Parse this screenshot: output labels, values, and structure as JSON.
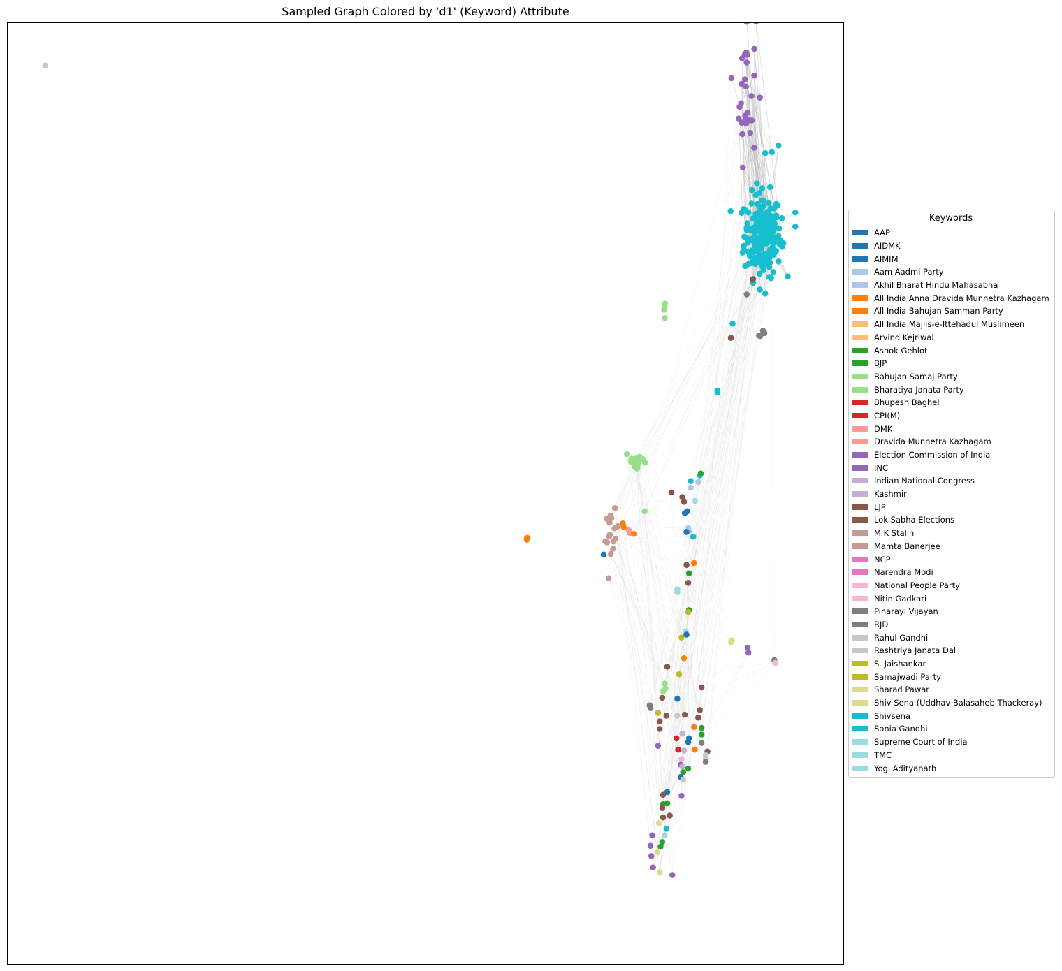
{
  "title": "Sampled Graph Colored by 'd1' (Keyword) Attribute",
  "legend": {
    "title": "Keywords",
    "entries": [
      {
        "label": "AAP",
        "color": "#1f77b4"
      },
      {
        "label": "AIDMK",
        "color": "#1f77b4"
      },
      {
        "label": "AIMIM",
        "color": "#1f77b4"
      },
      {
        "label": "Aam Aadmi Party",
        "color": "#aec7e8"
      },
      {
        "label": "Akhil Bharat Hindu Mahasabha",
        "color": "#aec7e8"
      },
      {
        "label": "All India Anna Dravida Munnetra Kazhagam",
        "color": "#ff7f0e"
      },
      {
        "label": "All India Bahujan Samman Party",
        "color": "#ff7f0e"
      },
      {
        "label": "All India Majlis-e-Ittehadul Muslimeen",
        "color": "#ffbb78"
      },
      {
        "label": "Arvind Kejriwal",
        "color": "#ffbb78"
      },
      {
        "label": "Ashok Gehlot",
        "color": "#2ca02c"
      },
      {
        "label": "BJP",
        "color": "#2ca02c"
      },
      {
        "label": "Bahujan Samaj Party",
        "color": "#98df8a"
      },
      {
        "label": "Bharatiya Janata Party",
        "color": "#98df8a"
      },
      {
        "label": "Bhupesh Baghel",
        "color": "#d62728"
      },
      {
        "label": "CPI(M)",
        "color": "#d62728"
      },
      {
        "label": "DMK",
        "color": "#ff9896"
      },
      {
        "label": "Dravida Munnetra Kazhagam",
        "color": "#ff9896"
      },
      {
        "label": "Election Commission of India",
        "color": "#9467bd"
      },
      {
        "label": "INC",
        "color": "#9467bd"
      },
      {
        "label": "Indian National Congress",
        "color": "#c5b0d5"
      },
      {
        "label": "Kashmir",
        "color": "#c5b0d5"
      },
      {
        "label": "LJP",
        "color": "#8c564b"
      },
      {
        "label": "Lok Sabha Elections",
        "color": "#8c564b"
      },
      {
        "label": "M K Stalin",
        "color": "#c49c94"
      },
      {
        "label": "Mamta Banerjee",
        "color": "#c49c94"
      },
      {
        "label": "NCP",
        "color": "#e377c2"
      },
      {
        "label": "Narendra Modi",
        "color": "#e377c2"
      },
      {
        "label": "National People Party",
        "color": "#f7b6d2"
      },
      {
        "label": "Nitin Gadkari",
        "color": "#f7b6d2"
      },
      {
        "label": "Pinarayi Vijayan",
        "color": "#7f7f7f"
      },
      {
        "label": "RJD",
        "color": "#7f7f7f"
      },
      {
        "label": "Rahul Gandhi",
        "color": "#c7c7c7"
      },
      {
        "label": "Rashtriya Janata Dal",
        "color": "#c7c7c7"
      },
      {
        "label": "S. Jaishankar",
        "color": "#bcbd22"
      },
      {
        "label": "Samajwadi Party",
        "color": "#bcbd22"
      },
      {
        "label": "Sharad Pawar",
        "color": "#dbdb8d"
      },
      {
        "label": "Shiv Sena (Uddhav Balasaheb Thackeray)",
        "color": "#dbdb8d"
      },
      {
        "label": "Shivsena",
        "color": "#17becf"
      },
      {
        "label": "Sonia Gandhi",
        "color": "#17becf"
      },
      {
        "label": "Supreme Court of India",
        "color": "#9edae5"
      },
      {
        "label": "TMC",
        "color": "#9edae5"
      },
      {
        "label": "Yogi Adityanath",
        "color": "#9edae5"
      }
    ]
  },
  "chart_data": {
    "type": "scatter",
    "title": "Sampled Graph Colored by 'd1' (Keyword) Attribute",
    "xlabel": "",
    "ylabel": "",
    "axes_visible": false,
    "grid": false,
    "legend_position": "right, outside plot",
    "legend_title": "Keywords",
    "xlim": [
      0,
      100
    ],
    "ylim": [
      0,
      100
    ],
    "edge_color": "#bbbbbb",
    "clusters": [
      {
        "x": 90.2,
        "y": 77.5,
        "n": 220,
        "sx": 1.1,
        "sy": 2.2,
        "color": "#17becf"
      },
      {
        "x": 88.2,
        "y": 93.2,
        "n": 30,
        "sx": 0.6,
        "sy": 4.0,
        "color": "#9467bd"
      },
      {
        "x": 72.2,
        "y": 45.5,
        "n": 16,
        "sx": 0.4,
        "sy": 1.3,
        "color": "#c49c94"
      },
      {
        "x": 75.2,
        "y": 53.5,
        "n": 14,
        "sx": 0.7,
        "sy": 0.6,
        "color": "#98df8a"
      },
      {
        "x": 78.5,
        "y": 69.8,
        "n": 5,
        "sx": 0.1,
        "sy": 0.5,
        "color": "#98df8a"
      },
      {
        "x": 90.0,
        "y": 67.1,
        "n": 5,
        "sx": 0.25,
        "sy": 0.12,
        "color": "#7f7f7f"
      },
      {
        "x": 62.1,
        "y": 45.2,
        "n": 4,
        "sx": 0.06,
        "sy": 0.12,
        "color": "#ff7f0e"
      }
    ],
    "points": [
      {
        "x": 4.5,
        "y": 95.5,
        "color": "#c7c7c7",
        "keyword": "Rahul Gandhi"
      },
      {
        "x": 92.1,
        "y": 87.0,
        "color": "#17becf"
      },
      {
        "x": 90.5,
        "y": 86.2,
        "color": "#17becf"
      },
      {
        "x": 91.3,
        "y": 86.3,
        "color": "#17becf"
      },
      {
        "x": 94.1,
        "y": 79.9,
        "color": "#17becf"
      },
      {
        "x": 94.1,
        "y": 78.4,
        "color": "#17becf"
      },
      {
        "x": 90.5,
        "y": 71.3,
        "color": "#17becf"
      },
      {
        "x": 89.0,
        "y": 72.8,
        "color": "#8c564b"
      },
      {
        "x": 88.3,
        "y": 71.2,
        "color": "#7f7f7f"
      },
      {
        "x": 86.6,
        "y": 68.1,
        "color": "#17becf"
      },
      {
        "x": 86.4,
        "y": 66.6,
        "color": "#8c564b"
      },
      {
        "x": 84.8,
        "y": 61.0,
        "color": "#17becf"
      },
      {
        "x": 84.8,
        "y": 60.8,
        "color": "#17becf"
      },
      {
        "x": 82.7,
        "y": 52.0,
        "color": "#17becf"
      },
      {
        "x": 82.8,
        "y": 52.2,
        "color": "#2ca02c"
      },
      {
        "x": 81.6,
        "y": 51.4,
        "color": "#17becf"
      },
      {
        "x": 79.3,
        "y": 50.2,
        "color": "#8c564b"
      },
      {
        "x": 80.6,
        "y": 49.7,
        "color": "#8c564b"
      },
      {
        "x": 80.8,
        "y": 49.2,
        "color": "#8c564b"
      },
      {
        "x": 81.2,
        "y": 48.2,
        "color": "#1f77b4"
      },
      {
        "x": 80.9,
        "y": 48.0,
        "color": "#1f77b4"
      },
      {
        "x": 81.6,
        "y": 50.7,
        "color": "#aec7e8"
      },
      {
        "x": 82.5,
        "y": 51.3,
        "color": "#aec7e8"
      },
      {
        "x": 82.1,
        "y": 49.3,
        "color": "#9edae5"
      },
      {
        "x": 81.3,
        "y": 46.4,
        "color": "#aec7e8"
      },
      {
        "x": 81.4,
        "y": 46.1,
        "color": "#aec7e8"
      },
      {
        "x": 81.1,
        "y": 46.0,
        "color": "#1f77b4"
      },
      {
        "x": 81.9,
        "y": 45.5,
        "color": "#17becf"
      },
      {
        "x": 82.0,
        "y": 42.7,
        "color": "#ff7f0e"
      },
      {
        "x": 81.1,
        "y": 42.5,
        "color": "#8c564b"
      },
      {
        "x": 81.4,
        "y": 41.6,
        "color": "#2ca02c"
      },
      {
        "x": 81.3,
        "y": 40.6,
        "color": "#8c564b"
      },
      {
        "x": 80.0,
        "y": 39.9,
        "color": "#9edae5"
      },
      {
        "x": 80.0,
        "y": 39.6,
        "color": "#9edae5"
      },
      {
        "x": 81.4,
        "y": 37.7,
        "color": "#2ca02c"
      },
      {
        "x": 81.3,
        "y": 37.5,
        "color": "#bcbd22"
      },
      {
        "x": 81.0,
        "y": 35.4,
        "color": "#9edae5"
      },
      {
        "x": 81.1,
        "y": 35.1,
        "color": "#1f77b4"
      },
      {
        "x": 80.5,
        "y": 34.8,
        "color": "#bcbd22"
      },
      {
        "x": 80.8,
        "y": 32.6,
        "color": "#ff7f0e"
      },
      {
        "x": 78.8,
        "y": 31.7,
        "color": "#8c564b"
      },
      {
        "x": 80.2,
        "y": 30.9,
        "color": "#bcbd22"
      },
      {
        "x": 78.5,
        "y": 29.9,
        "color": "#98df8a"
      },
      {
        "x": 78.6,
        "y": 29.4,
        "color": "#98df8a"
      },
      {
        "x": 78.3,
        "y": 29.1,
        "color": "#98df8a"
      },
      {
        "x": 80.0,
        "y": 28.3,
        "color": "#1f77b4"
      },
      {
        "x": 78.2,
        "y": 28.4,
        "color": "#8c564b"
      },
      {
        "x": 82.9,
        "y": 29.5,
        "color": "#8c564b"
      },
      {
        "x": 76.7,
        "y": 27.6,
        "color": "#7f7f7f"
      },
      {
        "x": 76.8,
        "y": 27.3,
        "color": "#7f7f7f"
      },
      {
        "x": 77.7,
        "y": 26.8,
        "color": "#bcbd22"
      },
      {
        "x": 78.7,
        "y": 26.5,
        "color": "#8c564b"
      },
      {
        "x": 80.0,
        "y": 26.5,
        "color": "#c7c7c7"
      },
      {
        "x": 80.9,
        "y": 26.6,
        "color": "#8c564b"
      },
      {
        "x": 82.7,
        "y": 27.1,
        "color": "#8c564b"
      },
      {
        "x": 82.5,
        "y": 26.3,
        "color": "#8c564b"
      },
      {
        "x": 77.9,
        "y": 25.9,
        "color": "#8c564b"
      },
      {
        "x": 77.9,
        "y": 25.1,
        "color": "#8c564b"
      },
      {
        "x": 82.0,
        "y": 25.3,
        "color": "#ff7f0e"
      },
      {
        "x": 82.9,
        "y": 25.2,
        "color": "#2ca02c"
      },
      {
        "x": 82.9,
        "y": 24.5,
        "color": "#2ca02c"
      },
      {
        "x": 80.6,
        "y": 24.6,
        "color": "#c5b0d5"
      },
      {
        "x": 79.9,
        "y": 24.1,
        "color": "#d62728"
      },
      {
        "x": 81.4,
        "y": 24.1,
        "color": "#1f77b4"
      },
      {
        "x": 81.3,
        "y": 23.7,
        "color": "#1f77b4"
      },
      {
        "x": 82.9,
        "y": 23.6,
        "color": "#7f7f7f"
      },
      {
        "x": 77.7,
        "y": 23.3,
        "color": "#9467bd"
      },
      {
        "x": 80.1,
        "y": 22.9,
        "color": "#d62728"
      },
      {
        "x": 80.8,
        "y": 22.8,
        "color": "#c5b0d5"
      },
      {
        "x": 82.1,
        "y": 22.9,
        "color": "#ff7f0e"
      },
      {
        "x": 83.6,
        "y": 22.7,
        "color": "#8c564b"
      },
      {
        "x": 83.4,
        "y": 22.3,
        "color": "#c7c7c7"
      },
      {
        "x": 83.4,
        "y": 21.9,
        "color": "#c7c7c7"
      },
      {
        "x": 83.4,
        "y": 21.6,
        "color": "#7f7f7f"
      },
      {
        "x": 80.5,
        "y": 21.9,
        "color": "#f7b6d2"
      },
      {
        "x": 80.4,
        "y": 21.3,
        "color": "#9467bd"
      },
      {
        "x": 80.6,
        "y": 21.1,
        "color": "#c5b0d5"
      },
      {
        "x": 81.3,
        "y": 20.9,
        "color": "#2ca02c"
      },
      {
        "x": 80.7,
        "y": 20.5,
        "color": "#2ca02c"
      },
      {
        "x": 80.4,
        "y": 20.0,
        "color": "#1f77b4"
      },
      {
        "x": 80.7,
        "y": 19.7,
        "color": "#c7c7c7"
      },
      {
        "x": 78.8,
        "y": 18.4,
        "color": "#1f77b4"
      },
      {
        "x": 78.3,
        "y": 18.1,
        "color": "#8c564b"
      },
      {
        "x": 80.5,
        "y": 18.0,
        "color": "#9467bd"
      },
      {
        "x": 78.8,
        "y": 17.2,
        "color": "#2ca02c"
      },
      {
        "x": 78.3,
        "y": 17.1,
        "color": "#2ca02c"
      },
      {
        "x": 78.2,
        "y": 16.7,
        "color": "#8c564b"
      },
      {
        "x": 78.3,
        "y": 15.7,
        "color": "#8c564b"
      },
      {
        "x": 79.1,
        "y": 15.9,
        "color": "#8c564b"
      },
      {
        "x": 77.8,
        "y": 15.1,
        "color": "#dbdb8d"
      },
      {
        "x": 78.7,
        "y": 14.5,
        "color": "#17becf"
      },
      {
        "x": 78.5,
        "y": 13.8,
        "color": "#9edae5"
      },
      {
        "x": 78.2,
        "y": 13.1,
        "color": "#2ca02c"
      },
      {
        "x": 78.0,
        "y": 12.6,
        "color": "#2ca02c"
      },
      {
        "x": 77.6,
        "y": 12.0,
        "color": "#dbdb8d"
      },
      {
        "x": 77.9,
        "y": 9.9,
        "color": "#dbdb8d"
      },
      {
        "x": 79.4,
        "y": 9.6,
        "color": "#9467bd"
      },
      {
        "x": 76.8,
        "y": 12.7,
        "color": "#9467bd"
      },
      {
        "x": 77.0,
        "y": 13.8,
        "color": "#9467bd"
      },
      {
        "x": 77.1,
        "y": 10.4,
        "color": "#9467bd"
      },
      {
        "x": 76.9,
        "y": 11.6,
        "color": "#9467bd"
      },
      {
        "x": 71.2,
        "y": 43.6,
        "color": "#1f77b4"
      },
      {
        "x": 73.6,
        "y": 46.5,
        "color": "#ff7f0e"
      },
      {
        "x": 73.5,
        "y": 46.9,
        "color": "#ff7f0e"
      },
      {
        "x": 74.2,
        "y": 46.2,
        "color": "#ff9896"
      },
      {
        "x": 74.3,
        "y": 45.9,
        "color": "#ff9896"
      },
      {
        "x": 74.8,
        "y": 45.8,
        "color": "#ff7f0e"
      },
      {
        "x": 76.1,
        "y": 48.2,
        "color": "#98df8a"
      },
      {
        "x": 86.5,
        "y": 34.5,
        "color": "#dbdb8d"
      },
      {
        "x": 86.4,
        "y": 34.3,
        "color": "#dbdb8d"
      },
      {
        "x": 88.4,
        "y": 33.7,
        "color": "#9467bd"
      },
      {
        "x": 88.5,
        "y": 33.2,
        "color": "#9467bd"
      },
      {
        "x": 91.6,
        "y": 32.4,
        "color": "#7f7f7f"
      },
      {
        "x": 91.7,
        "y": 32.1,
        "color": "#f7b6d2"
      }
    ],
    "edges_sampled": true
  }
}
